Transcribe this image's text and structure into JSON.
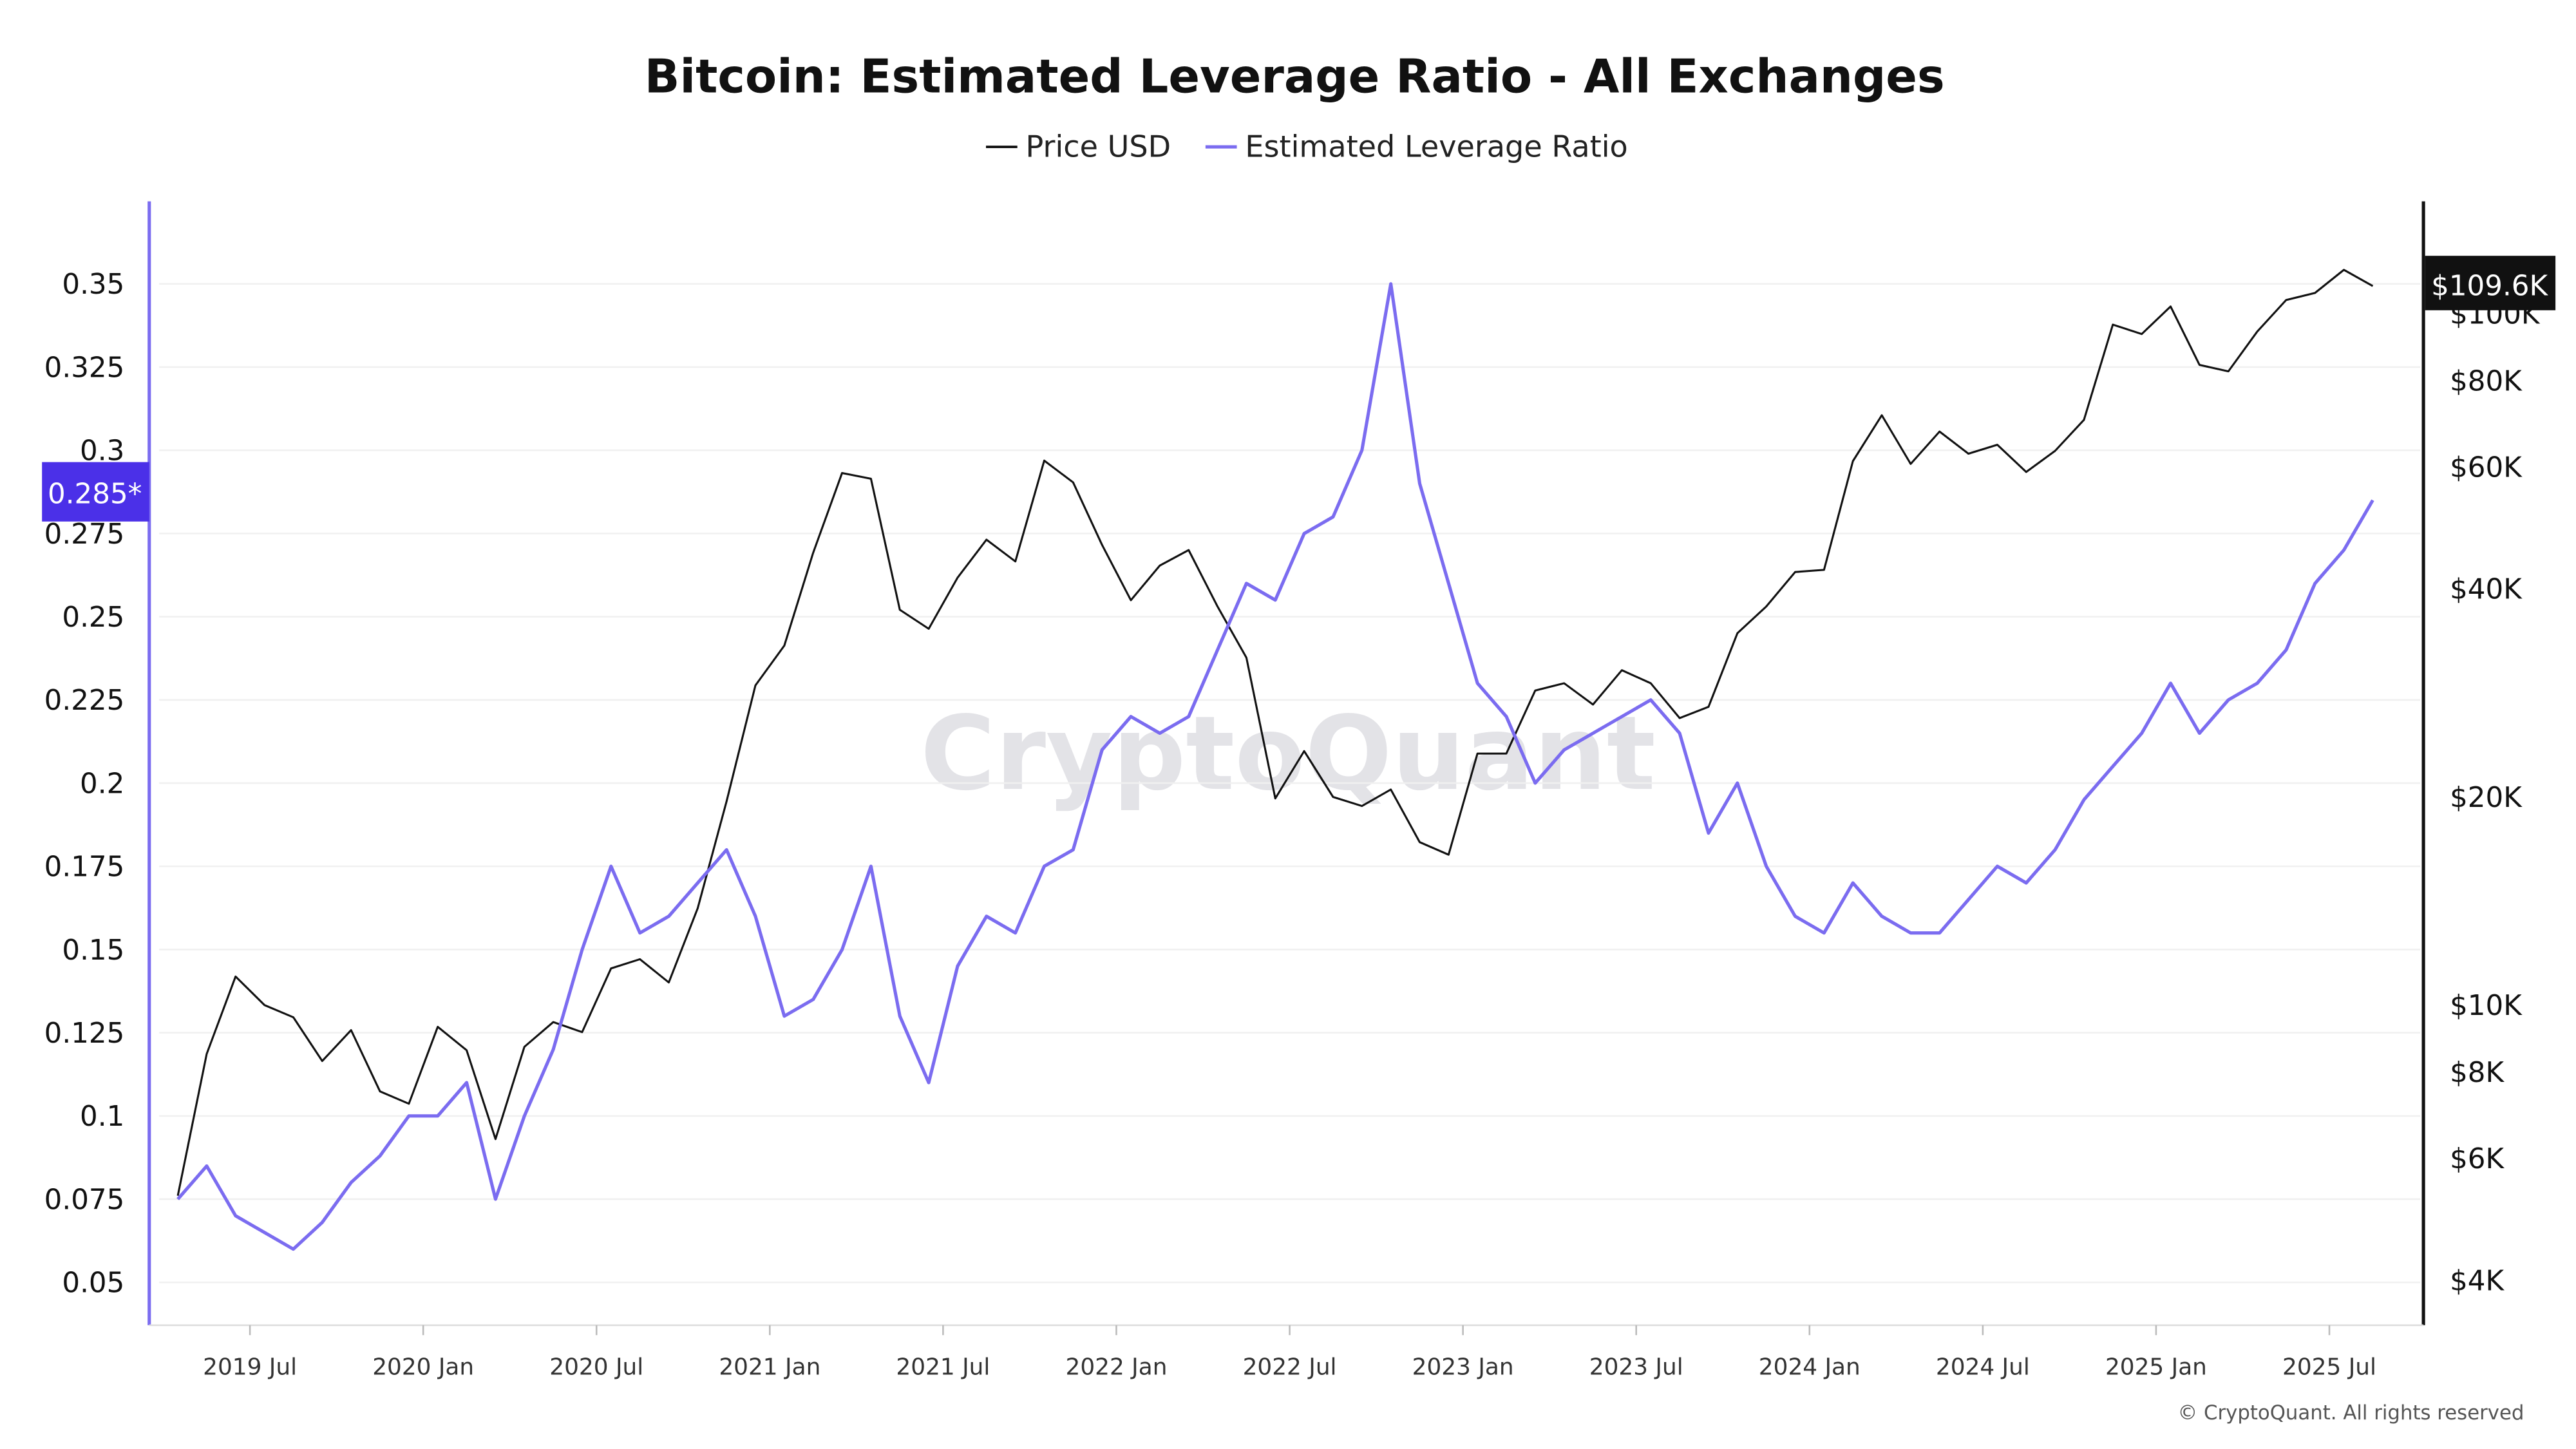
{
  "chart_data": {
    "type": "line",
    "title": "Bitcoin: Estimated Leverage Ratio - All Exchanges",
    "legend": {
      "placement": "top-center",
      "entries": [
        "Price USD",
        "Estimated Leverage Ratio"
      ]
    },
    "grid": true,
    "watermark": "CryptoQuant",
    "footer": "© CryptoQuant. All rights reserved",
    "x_ticks": [
      "2019 Jul",
      "2020 Jan",
      "2020 Jul",
      "2021 Jan",
      "2021 Jul",
      "2022 Jan",
      "2022 Jul",
      "2023 Jan",
      "2023 Jul",
      "2024 Jan",
      "2024 Jul",
      "2025 Jan",
      "2025 Jul"
    ],
    "left_axis": {
      "scale": "linear",
      "ylim": [
        0.04,
        0.365
      ],
      "ticks": [
        "0.35",
        "0.325",
        "0.3",
        "0.275",
        "0.25",
        "0.225",
        "0.2",
        "0.175",
        "0.15",
        "0.125",
        "0.1",
        "0.075",
        "0.05"
      ],
      "current_label": "0.285*",
      "color": "#7b6cf0"
    },
    "right_axis": {
      "scale": "log",
      "ticks": [
        "$100K",
        "$80K",
        "$60K",
        "$40K",
        "$20K",
        "$10K",
        "$8K",
        "$6K",
        "$4K"
      ],
      "current_label": "$109.6K",
      "color": "#111111"
    },
    "x": [
      "2019-04",
      "2019-05",
      "2019-06",
      "2019-07",
      "2019-08",
      "2019-09",
      "2019-10",
      "2019-11",
      "2019-12",
      "2020-01",
      "2020-02",
      "2020-03",
      "2020-04",
      "2020-05",
      "2020-06",
      "2020-07",
      "2020-08",
      "2020-09",
      "2020-10",
      "2020-11",
      "2020-12",
      "2021-01",
      "2021-02",
      "2021-03",
      "2021-04",
      "2021-05",
      "2021-06",
      "2021-07",
      "2021-08",
      "2021-09",
      "2021-10",
      "2021-11",
      "2021-12",
      "2022-01",
      "2022-02",
      "2022-03",
      "2022-04",
      "2022-05",
      "2022-06",
      "2022-07",
      "2022-08",
      "2022-09",
      "2022-10",
      "2022-11",
      "2022-12",
      "2023-01",
      "2023-02",
      "2023-03",
      "2023-04",
      "2023-05",
      "2023-06",
      "2023-07",
      "2023-08",
      "2023-09",
      "2023-10",
      "2023-11",
      "2023-12",
      "2024-01",
      "2024-02",
      "2024-03",
      "2024-04",
      "2024-05",
      "2024-06",
      "2024-07",
      "2024-08",
      "2024-09",
      "2024-10",
      "2024-11",
      "2024-12",
      "2025-01",
      "2025-02",
      "2025-03",
      "2025-04",
      "2025-05",
      "2025-06",
      "2025-07",
      "2025-08"
    ],
    "series": [
      {
        "name": "Price USD",
        "axis": "right",
        "color": "#111111",
        "values": [
          5300,
          8500,
          11000,
          10000,
          9600,
          8300,
          9200,
          7500,
          7200,
          9300,
          8600,
          6400,
          8700,
          9450,
          9140,
          11300,
          11650,
          10780,
          13800,
          19700,
          29000,
          33100,
          45100,
          58800,
          57700,
          37300,
          35000,
          41500,
          47100,
          43800,
          61300,
          57000,
          46300,
          38500,
          43200,
          45500,
          37700,
          31800,
          19900,
          23300,
          20000,
          19400,
          20500,
          17200,
          16500,
          23100,
          23100,
          28500,
          29200,
          27200,
          30500,
          29200,
          26000,
          27000,
          34500,
          37700,
          42300,
          42600,
          61200,
          71300,
          60600,
          67500,
          62700,
          64600,
          59000,
          63300,
          70200,
          96400,
          93400,
          102400,
          84300,
          82500,
          94200,
          104600,
          107100,
          115700,
          109600
        ]
      },
      {
        "name": "Estimated Leverage Ratio",
        "axis": "left",
        "color": "#7b6cf0",
        "values": [
          0.075,
          0.085,
          0.07,
          0.065,
          0.06,
          0.068,
          0.08,
          0.088,
          0.1,
          0.1,
          0.11,
          0.075,
          0.1,
          0.12,
          0.15,
          0.175,
          0.155,
          0.16,
          0.17,
          0.18,
          0.16,
          0.13,
          0.135,
          0.15,
          0.175,
          0.13,
          0.11,
          0.145,
          0.16,
          0.155,
          0.175,
          0.18,
          0.21,
          0.22,
          0.215,
          0.22,
          0.24,
          0.26,
          0.255,
          0.275,
          0.28,
          0.3,
          0.35,
          0.29,
          0.26,
          0.23,
          0.22,
          0.2,
          0.21,
          0.215,
          0.22,
          0.225,
          0.215,
          0.185,
          0.2,
          0.175,
          0.16,
          0.155,
          0.17,
          0.16,
          0.155,
          0.155,
          0.165,
          0.175,
          0.17,
          0.18,
          0.195,
          0.205,
          0.215,
          0.23,
          0.215,
          0.225,
          0.23,
          0.24,
          0.26,
          0.27,
          0.285
        ]
      }
    ]
  }
}
